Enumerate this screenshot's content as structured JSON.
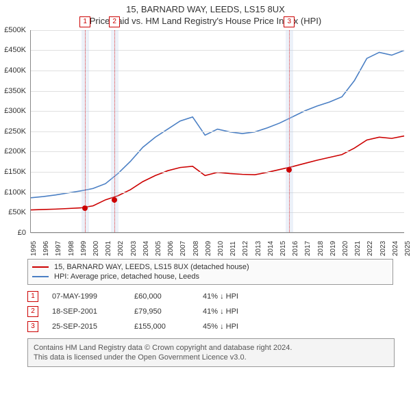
{
  "title_main": "15, BARNARD WAY, LEEDS, LS15 8UX",
  "title_sub": "Price paid vs. HM Land Registry's House Price Index (HPI)",
  "colors": {
    "series_property": "#cc0000",
    "series_hpi": "#4a7fc4",
    "grid": "#e0e0e0",
    "axis": "#888888",
    "shade": "rgba(180,200,230,0.25)"
  },
  "y_axis": {
    "min": 0,
    "max": 500000,
    "step": 50000,
    "labels": [
      "£0",
      "£50K",
      "£100K",
      "£150K",
      "£200K",
      "£250K",
      "£300K",
      "£350K",
      "£400K",
      "£450K",
      "£500K"
    ]
  },
  "x_axis": {
    "min": 1995,
    "max": 2025,
    "labels": [
      "1995",
      "1996",
      "1997",
      "1998",
      "1999",
      "2000",
      "2001",
      "2002",
      "2003",
      "2004",
      "2005",
      "2006",
      "2007",
      "2008",
      "2009",
      "2010",
      "2011",
      "2012",
      "2013",
      "2014",
      "2015",
      "2016",
      "2017",
      "2018",
      "2019",
      "2020",
      "2021",
      "2022",
      "2023",
      "2024",
      "2025"
    ]
  },
  "series": {
    "property": {
      "label": "15, BARNARD WAY, LEEDS, LS15 8UX (detached house)",
      "color": "#cc0000",
      "points": [
        [
          1995,
          55000
        ],
        [
          1996,
          56000
        ],
        [
          1997,
          57000
        ],
        [
          1998,
          58500
        ],
        [
          1999,
          60000
        ],
        [
          2000,
          65000
        ],
        [
          2001,
          79950
        ],
        [
          2002,
          90000
        ],
        [
          2003,
          105000
        ],
        [
          2004,
          125000
        ],
        [
          2005,
          140000
        ],
        [
          2006,
          152000
        ],
        [
          2007,
          160000
        ],
        [
          2008,
          163000
        ],
        [
          2009,
          140000
        ],
        [
          2010,
          148000
        ],
        [
          2011,
          145000
        ],
        [
          2012,
          143000
        ],
        [
          2013,
          142000
        ],
        [
          2014,
          148000
        ],
        [
          2015,
          155000
        ],
        [
          2016,
          162000
        ],
        [
          2017,
          170000
        ],
        [
          2018,
          178000
        ],
        [
          2019,
          185000
        ],
        [
          2020,
          192000
        ],
        [
          2021,
          208000
        ],
        [
          2022,
          228000
        ],
        [
          2023,
          235000
        ],
        [
          2024,
          232000
        ],
        [
          2025,
          238000
        ]
      ]
    },
    "hpi": {
      "label": "HPI: Average price, detached house, Leeds",
      "color": "#4a7fc4",
      "points": [
        [
          1995,
          85000
        ],
        [
          1996,
          88000
        ],
        [
          1997,
          92000
        ],
        [
          1998,
          97000
        ],
        [
          1999,
          102000
        ],
        [
          2000,
          108000
        ],
        [
          2001,
          120000
        ],
        [
          2002,
          145000
        ],
        [
          2003,
          175000
        ],
        [
          2004,
          210000
        ],
        [
          2005,
          235000
        ],
        [
          2006,
          255000
        ],
        [
          2007,
          275000
        ],
        [
          2008,
          285000
        ],
        [
          2009,
          240000
        ],
        [
          2010,
          255000
        ],
        [
          2011,
          248000
        ],
        [
          2012,
          244000
        ],
        [
          2013,
          248000
        ],
        [
          2014,
          258000
        ],
        [
          2015,
          270000
        ],
        [
          2016,
          285000
        ],
        [
          2017,
          300000
        ],
        [
          2018,
          312000
        ],
        [
          2019,
          322000
        ],
        [
          2020,
          335000
        ],
        [
          2021,
          375000
        ],
        [
          2022,
          430000
        ],
        [
          2023,
          445000
        ],
        [
          2024,
          438000
        ],
        [
          2025,
          450000
        ]
      ]
    }
  },
  "markers": [
    {
      "num": "1",
      "year": 1999.35,
      "shade_width_years": 0.6
    },
    {
      "num": "2",
      "year": 2001.71,
      "shade_width_years": 0.6
    },
    {
      "num": "3",
      "year": 2015.73,
      "shade_width_years": 0.6
    }
  ],
  "sale_dots": [
    {
      "year": 1999.35,
      "value": 60000
    },
    {
      "year": 2001.71,
      "value": 79950
    },
    {
      "year": 2015.73,
      "value": 155000
    }
  ],
  "legend": [
    {
      "color": "#cc0000",
      "text": "15, BARNARD WAY, LEEDS, LS15 8UX (detached house)"
    },
    {
      "color": "#4a7fc4",
      "text": "HPI: Average price, detached house, Leeds"
    }
  ],
  "events": [
    {
      "num": "1",
      "date": "07-MAY-1999",
      "price": "£60,000",
      "delta": "41% ↓ HPI"
    },
    {
      "num": "2",
      "date": "18-SEP-2001",
      "price": "£79,950",
      "delta": "41% ↓ HPI"
    },
    {
      "num": "3",
      "date": "25-SEP-2015",
      "price": "£155,000",
      "delta": "45% ↓ HPI"
    }
  ],
  "footnote_line1": "Contains HM Land Registry data © Crown copyright and database right 2024.",
  "footnote_line2": "This data is licensed under the Open Government Licence v3.0."
}
